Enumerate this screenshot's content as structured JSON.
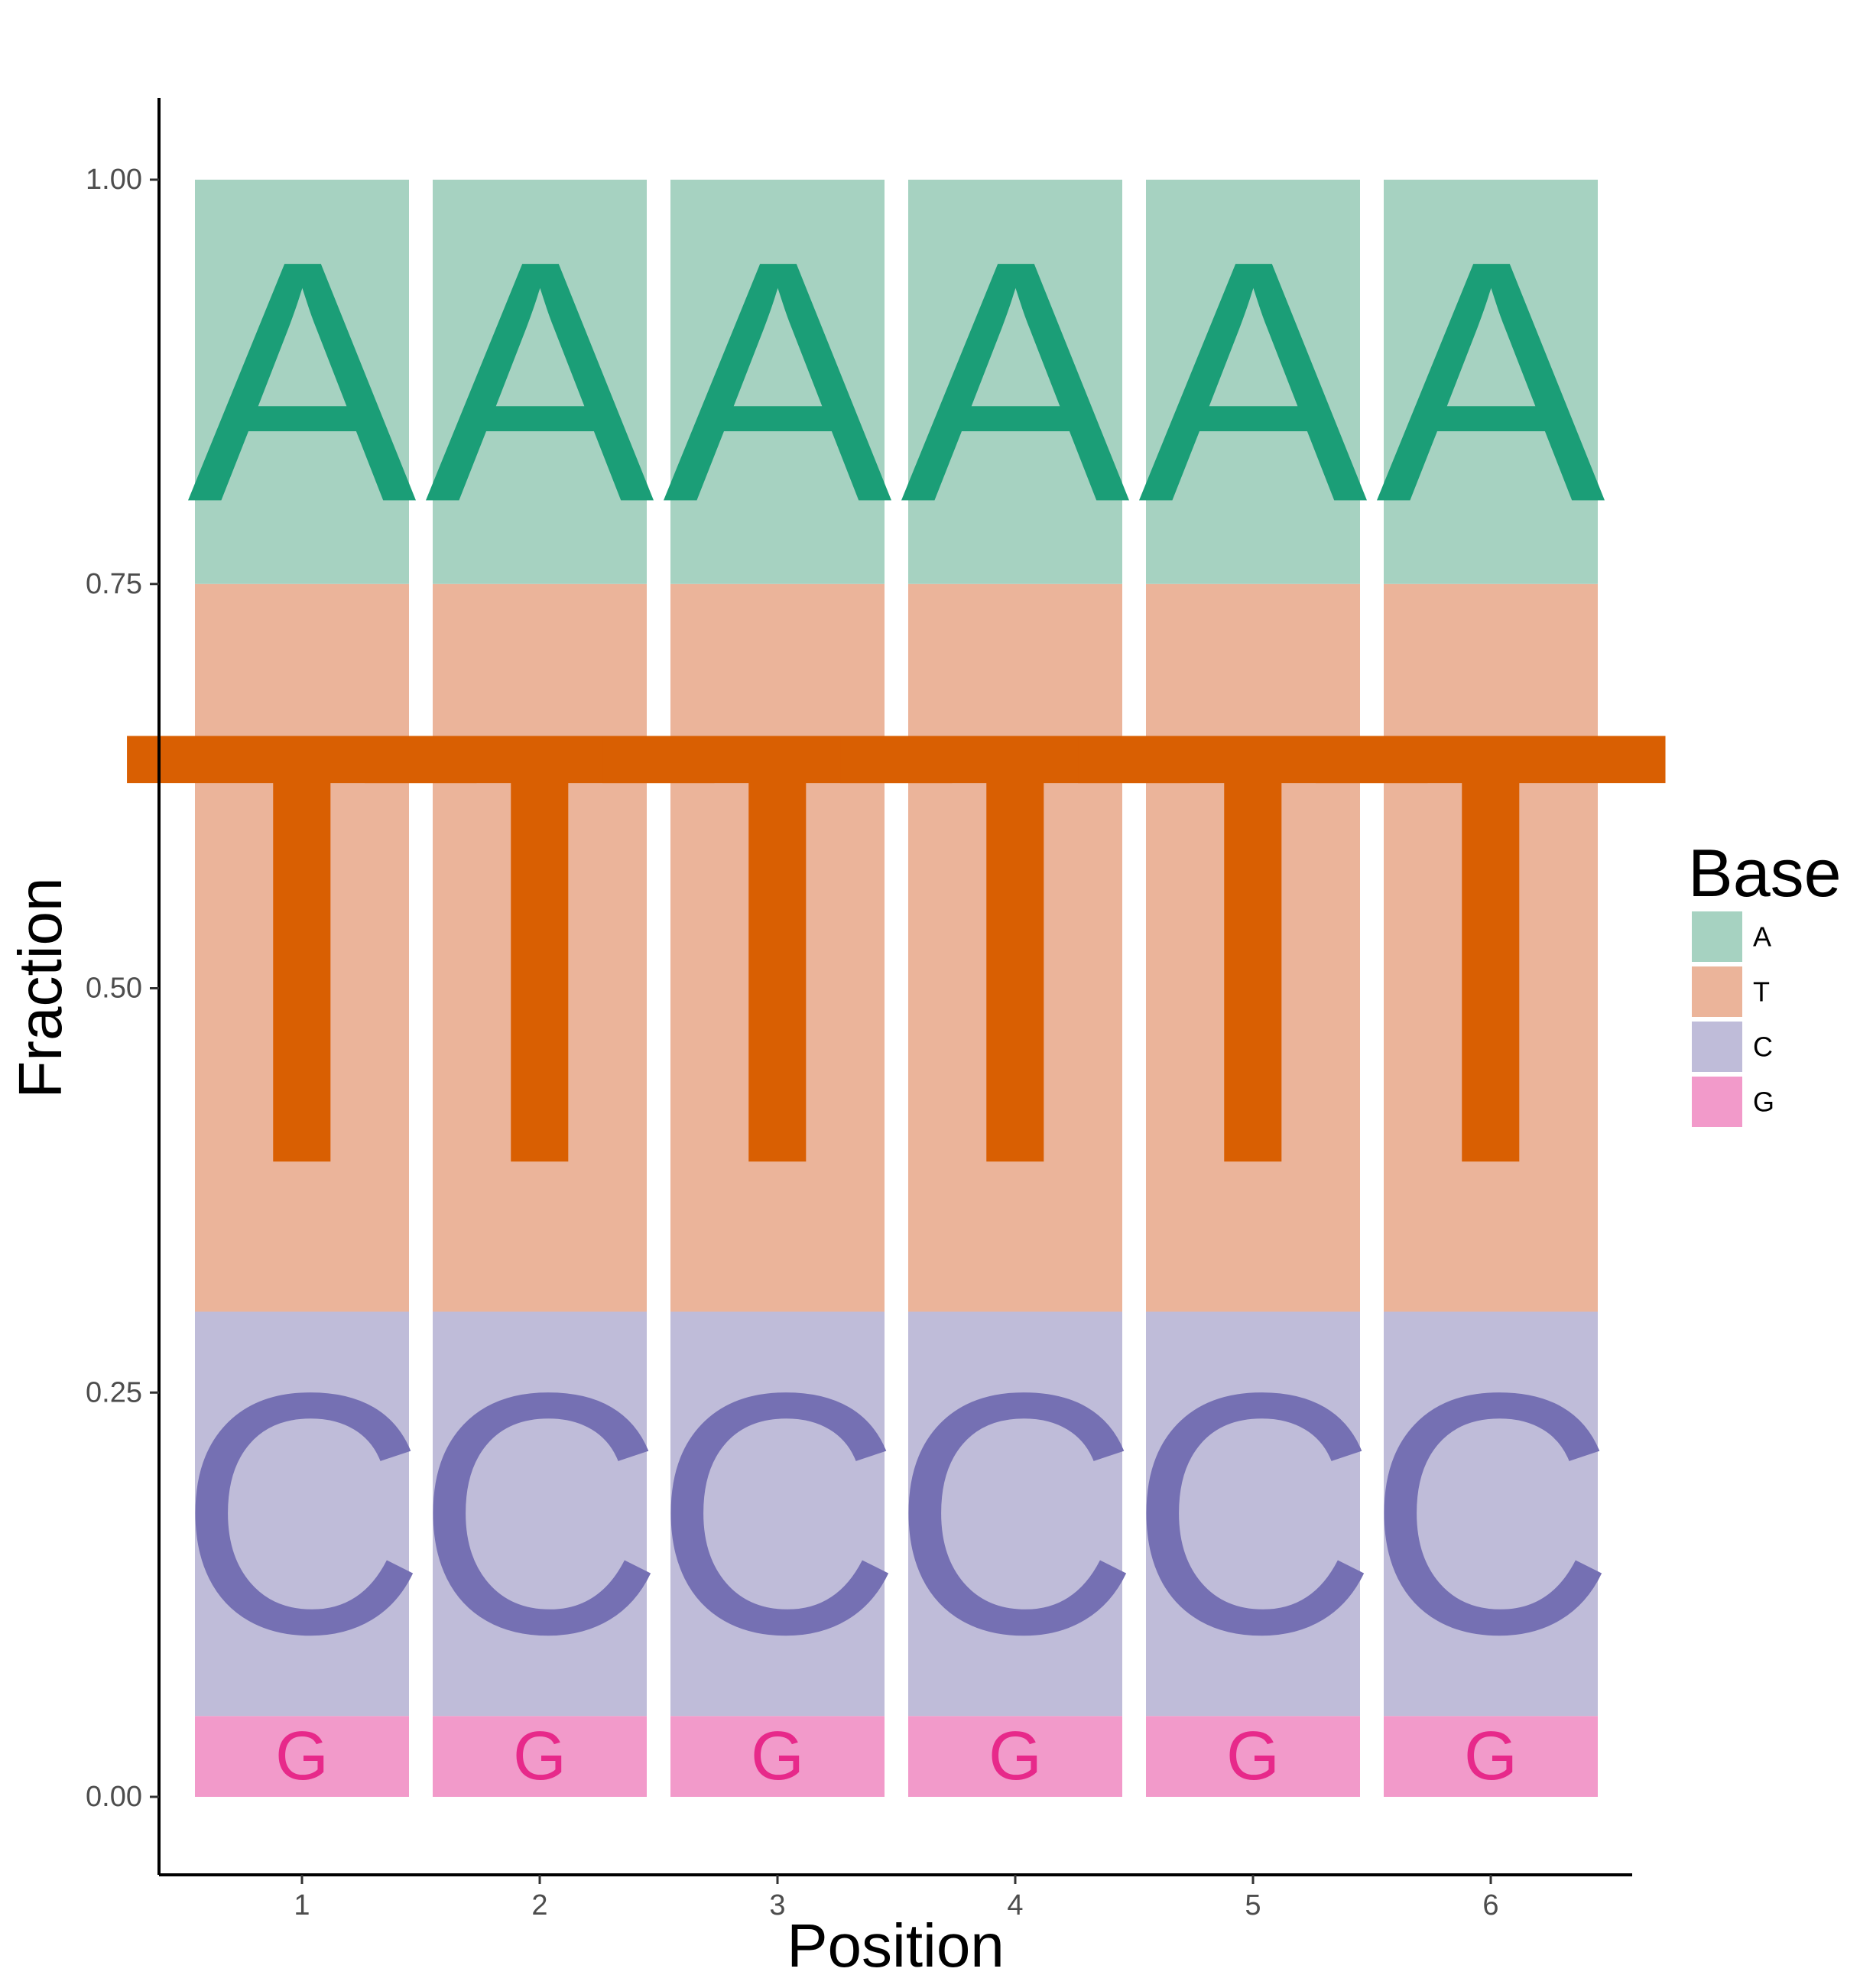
{
  "chart_data": {
    "type": "bar",
    "stacked": true,
    "title": "",
    "xlabel": "Position",
    "ylabel": "Fraction",
    "categories": [
      "1",
      "2",
      "3",
      "4",
      "5",
      "6"
    ],
    "ylim": [
      -0.05,
      1.05
    ],
    "yticks": [
      "0.00",
      "0.25",
      "0.50",
      "0.75",
      "1.00"
    ],
    "grid": false,
    "legend": {
      "title": "Base",
      "position": "right"
    },
    "series": [
      {
        "name": "G",
        "values": [
          0.05,
          0.05,
          0.05,
          0.05,
          0.05,
          0.05
        ],
        "fill": "#F29ACA",
        "letter_color": "#E7298A"
      },
      {
        "name": "C",
        "values": [
          0.25,
          0.25,
          0.25,
          0.25,
          0.25,
          0.25
        ],
        "fill": "#BFBCD9",
        "letter_color": "#7570B3"
      },
      {
        "name": "T",
        "values": [
          0.45,
          0.45,
          0.45,
          0.45,
          0.45,
          0.45
        ],
        "fill": "#EBB49A",
        "letter_color": "#D95F02"
      },
      {
        "name": "A",
        "values": [
          0.25,
          0.25,
          0.25,
          0.25,
          0.25,
          0.25
        ],
        "fill": "#A6D2C1",
        "letter_color": "#1B9E77"
      }
    ],
    "legend_order": [
      "A",
      "T",
      "C",
      "G"
    ]
  }
}
